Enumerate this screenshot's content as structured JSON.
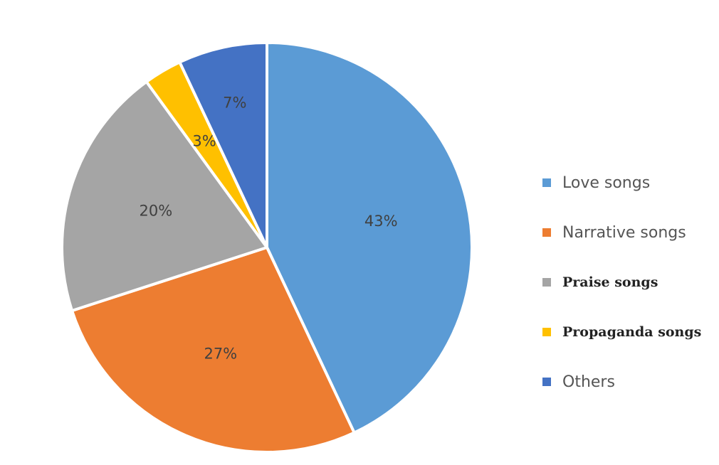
{
  "chart_data": {
    "type": "pie",
    "title": "",
    "legend_position": "right",
    "slices": [
      {
        "name": "Love songs",
        "value": 43,
        "label": "43%",
        "color": "#5B9BD5",
        "font": "sans"
      },
      {
        "name": "Narrative songs",
        "value": 27,
        "label": "27%",
        "color": "#ED7D31",
        "font": "sans"
      },
      {
        "name": "Praise songs",
        "value": 20,
        "label": "20%",
        "color": "#A5A5A5",
        "font": "serif-bold"
      },
      {
        "name": "Propaganda songs",
        "value": 3,
        "label": "3%",
        "color": "#FFC000",
        "font": "serif-bold"
      },
      {
        "name": "Others",
        "value": 7,
        "label": "7%",
        "color": "#4472C4",
        "font": "sans"
      }
    ]
  }
}
